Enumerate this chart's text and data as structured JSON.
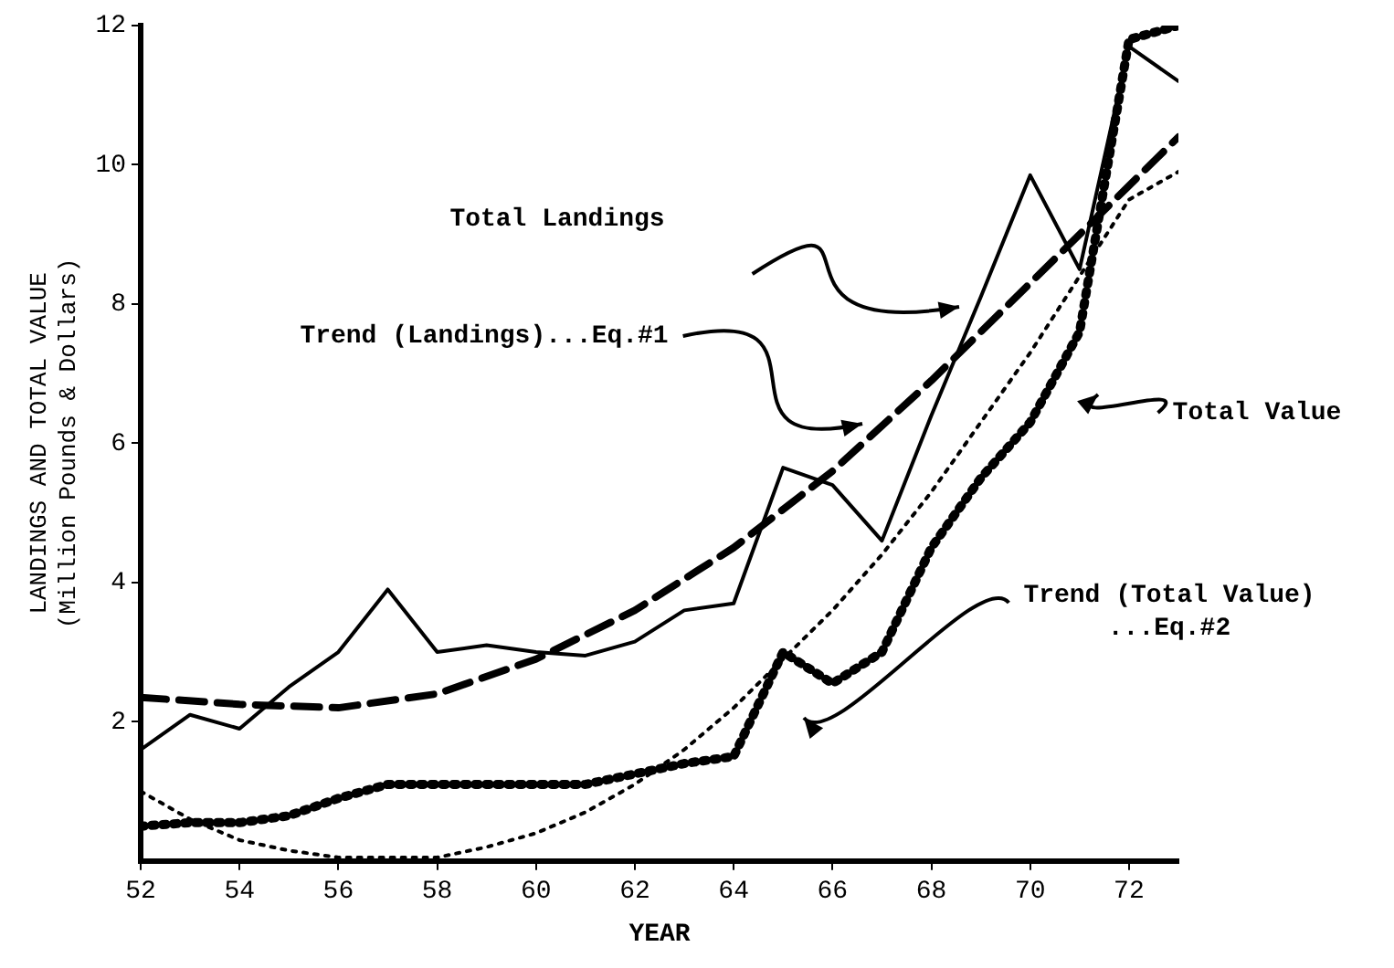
{
  "chart_data": {
    "type": "line",
    "xlabel": "YEAR",
    "ylabel": "LANDINGS AND TOTAL VALUE\n(Million Pounds & Dollars)",
    "xlim": [
      52,
      73
    ],
    "xticks": [
      52,
      54,
      56,
      58,
      60,
      62,
      64,
      66,
      68,
      70,
      72
    ],
    "ylim": [
      0,
      12
    ],
    "yticks": [
      2,
      4,
      6,
      8,
      10,
      12
    ],
    "grid": false,
    "legend": false,
    "marker": "none",
    "series": [
      {
        "color": "#000000",
        "line_style": "solid",
        "x": [
          52,
          53,
          54,
          55,
          56,
          57,
          58,
          59,
          60,
          61,
          62,
          63,
          64,
          65,
          66,
          67,
          68,
          69,
          70,
          71,
          72,
          73
        ],
        "values": [
          1.6,
          2.1,
          1.9,
          2.5,
          3.0,
          3.9,
          3.0,
          3.1,
          3.0,
          2.95,
          3.15,
          3.6,
          3.7,
          5.65,
          5.4,
          4.6,
          6.4,
          8.1,
          9.85,
          8.5,
          11.7,
          11.2
        ]
      },
      {
        "color": "#000000",
        "line_style": "dashed",
        "x": [
          52,
          54,
          56,
          58,
          60,
          62,
          64,
          66,
          68,
          70,
          72,
          73
        ],
        "values": [
          2.35,
          2.25,
          2.2,
          2.4,
          2.9,
          3.6,
          4.5,
          5.6,
          6.9,
          8.3,
          9.7,
          10.4
        ]
      },
      {
        "color": "#000000",
        "line_style": "dotted",
        "x": [
          52,
          53,
          54,
          55,
          56,
          57,
          58,
          59,
          60,
          61,
          62,
          63,
          64,
          65,
          66,
          67,
          68,
          69,
          70,
          71,
          72,
          73
        ],
        "values": [
          0.5,
          0.55,
          0.55,
          0.65,
          0.9,
          1.1,
          1.1,
          1.1,
          1.1,
          1.1,
          1.25,
          1.4,
          1.5,
          3.0,
          2.55,
          3.0,
          4.5,
          5.5,
          6.3,
          7.6,
          11.8,
          12.0
        ]
      },
      {
        "color": "#000000",
        "line_style": "dotted",
        "x": [
          52,
          53,
          54,
          55,
          56,
          57,
          58,
          59,
          60,
          61,
          62,
          63,
          64,
          65,
          66,
          67,
          68,
          69,
          70,
          71,
          72,
          73
        ],
        "values": [
          1.0,
          0.6,
          0.3,
          0.15,
          0.05,
          0.05,
          0.05,
          0.2,
          0.4,
          0.7,
          1.1,
          1.6,
          2.2,
          2.9,
          3.6,
          4.4,
          5.3,
          6.3,
          7.3,
          8.4,
          9.5,
          9.9
        ]
      }
    ],
    "annotations": [
      "Total Landings",
      "Trend (Landings)...Eq.#1",
      "Total Value",
      "Trend (Total Value)\n...Eq.#2"
    ]
  }
}
